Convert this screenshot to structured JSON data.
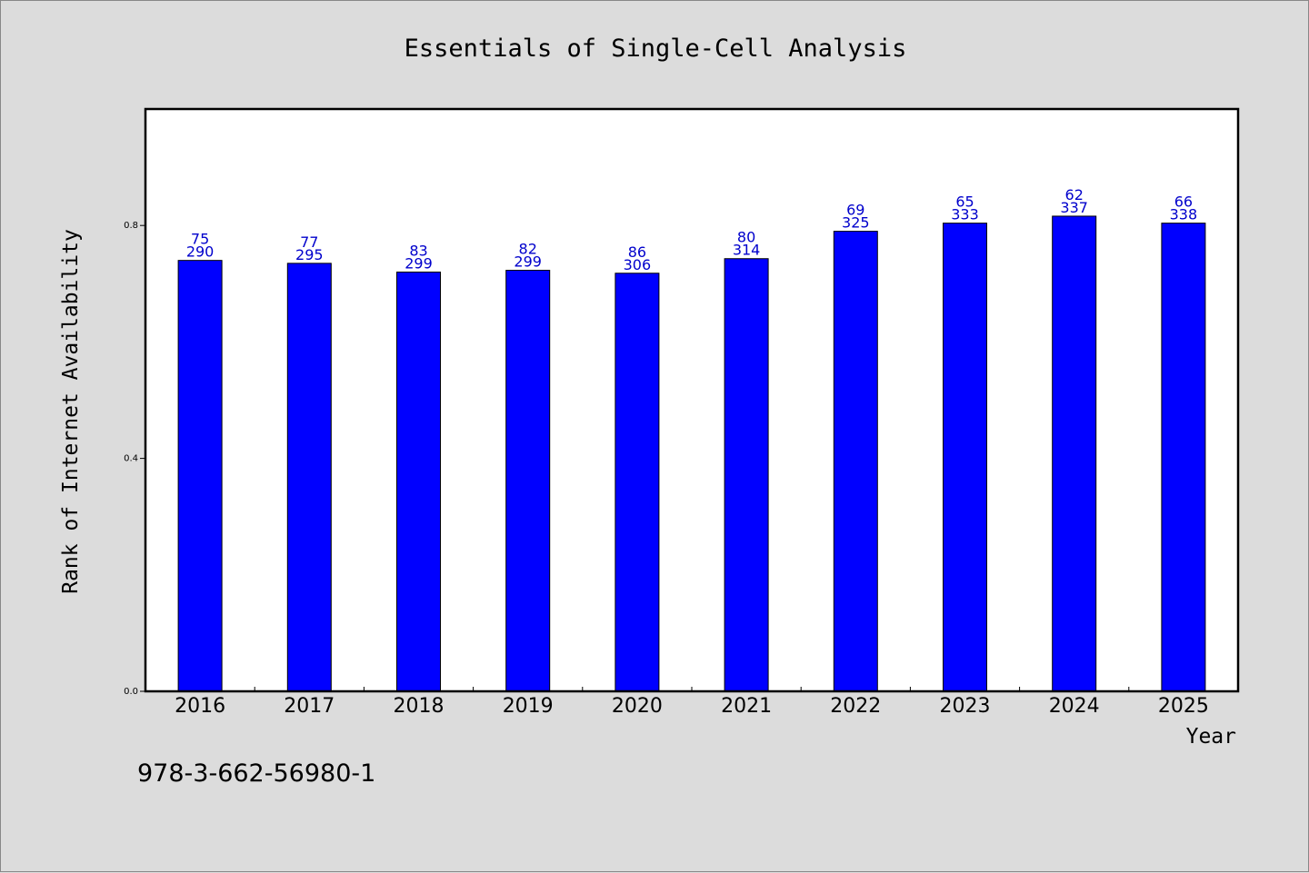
{
  "chart_data": {
    "type": "bar",
    "title": "Essentials of Single-Cell Analysis",
    "xlabel": "Year",
    "ylabel": "Rank of Internet Availability",
    "categories": [
      "2016",
      "2017",
      "2018",
      "2019",
      "2020",
      "2021",
      "2022",
      "2023",
      "2024",
      "2025"
    ],
    "series": [
      {
        "values": [
          0.74,
          0.735,
          0.72,
          0.723,
          0.718,
          0.743,
          0.79,
          0.804,
          0.816,
          0.804
        ],
        "label_top": [
          "75",
          "77",
          "83",
          "82",
          "86",
          "80",
          "69",
          "65",
          "62",
          "66"
        ],
        "label_bottom": [
          "290",
          "295",
          "299",
          "299",
          "306",
          "314",
          "325",
          "333",
          "337",
          "338"
        ]
      }
    ],
    "ylim": [
      0,
      1.0
    ],
    "yticks": [
      "0.0",
      "0.4",
      "0.8"
    ],
    "bar_color": "#0000ff",
    "label_color": "#0000cc",
    "grid": false,
    "legend": "none"
  },
  "footer": {
    "isbn": "978-3-662-56980-1"
  }
}
